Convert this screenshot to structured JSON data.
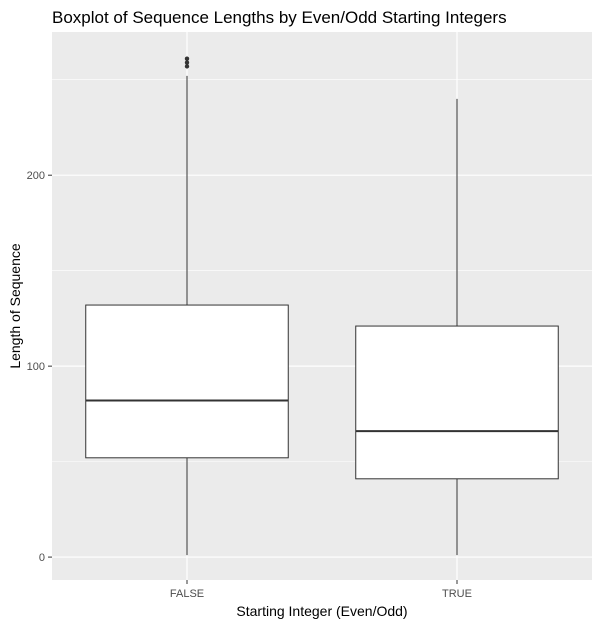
{
  "chart_data": {
    "type": "boxplot",
    "title": "Boxplot of Sequence Lengths by Even/Odd Starting Integers",
    "xlabel": "Starting Integer (Even/Odd)",
    "ylabel": "Length of Sequence",
    "categories": [
      "FALSE",
      "TRUE"
    ],
    "y_ticks": [
      0,
      100,
      200
    ],
    "ylim": [
      -12,
      275
    ],
    "boxes": [
      {
        "category": "FALSE",
        "min": 1,
        "q1": 52,
        "median": 82,
        "q3": 132,
        "max": 252,
        "outliers": [
          257,
          259,
          261
        ]
      },
      {
        "category": "TRUE",
        "min": 1,
        "q1": 41,
        "median": 66,
        "q3": 121,
        "max": 240,
        "outliers": []
      }
    ],
    "grid": true,
    "colors": {
      "panel": "#ebebeb",
      "grid": "#ffffff",
      "box_fill": "#ffffff",
      "box_stroke": "#333333",
      "tick": "#333333"
    }
  }
}
